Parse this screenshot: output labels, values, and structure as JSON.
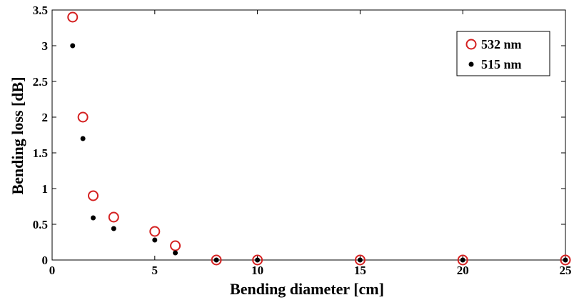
{
  "chart_data": {
    "type": "scatter",
    "xlabel": "Bending diameter [cm]",
    "ylabel": "Bending loss [dB]",
    "xlim": [
      0,
      25
    ],
    "ylim": [
      0,
      3.5
    ],
    "xticks": [
      "0",
      "5",
      "10",
      "15",
      "20",
      "25"
    ],
    "yticks": [
      "0",
      "0.5",
      "1",
      "1.5",
      "2",
      "2.5",
      "3",
      "3.5"
    ],
    "grid": false,
    "legend_position": "top-right",
    "series": [
      {
        "name": "532 nm",
        "marker": "open-circle",
        "color": "#d42020",
        "x": [
          1,
          1.5,
          2,
          3,
          5,
          6,
          8,
          10,
          15,
          20,
          25
        ],
        "y": [
          3.4,
          2.0,
          0.9,
          0.6,
          0.4,
          0.2,
          0,
          0,
          0,
          0,
          0
        ]
      },
      {
        "name": "515 nm",
        "marker": "filled-dot",
        "color": "#000000",
        "x": [
          1,
          1.5,
          2,
          3,
          5,
          6,
          8,
          10,
          15,
          20,
          25
        ],
        "y": [
          3.0,
          1.7,
          0.59,
          0.44,
          0.28,
          0.1,
          0,
          0,
          0,
          0,
          0
        ]
      }
    ]
  }
}
